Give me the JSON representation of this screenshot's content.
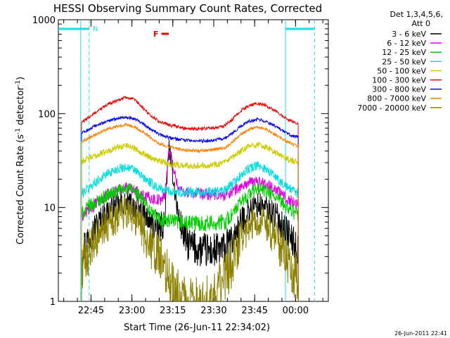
{
  "chart_data": {
    "type": "line",
    "title": "HESSI Observing Summary Count Rates, Corrected",
    "xlabel": "Start Time (26-Jun-11 22:34:02)",
    "ylabel_main": "Corrected Count Rate (s",
    "ylabel_sup1": "-1",
    "ylabel_mid": " detector",
    "ylabel_sup2": "-1",
    "ylabel_end": ")",
    "yscale": "log",
    "ylim": [
      1,
      1000
    ],
    "xlim_min": [
      -1,
      98
    ],
    "y_ticks": [
      {
        "value": 1,
        "label": "1"
      },
      {
        "value": 10,
        "label": "10"
      },
      {
        "value": 100,
        "label": "100"
      },
      {
        "value": 1000,
        "label": "1000"
      }
    ],
    "x_ticks": [
      {
        "value": 10.97,
        "label": "22:45"
      },
      {
        "value": 25.97,
        "label": "23:00"
      },
      {
        "value": 40.97,
        "label": "23:15"
      },
      {
        "value": 55.97,
        "label": "23:30"
      },
      {
        "value": 70.97,
        "label": "23:45"
      },
      {
        "value": 85.97,
        "label": "00:00"
      }
    ],
    "legend": {
      "placement": "right",
      "header": [
        "Det 1,3,4,5,6,",
        "Att 0"
      ]
    },
    "series": [
      {
        "name": "3 - 6 keV",
        "color": "#000000",
        "points": [
          [
            7.5,
            3.5
          ],
          [
            10,
            4.8
          ],
          [
            13,
            6.5
          ],
          [
            17,
            9
          ],
          [
            21,
            10.5
          ],
          [
            24,
            11
          ],
          [
            27,
            10.5
          ],
          [
            30,
            8.5
          ],
          [
            33,
            6.5
          ],
          [
            36,
            6
          ],
          [
            38,
            7
          ],
          [
            39.5,
            45
          ],
          [
            41,
            22
          ],
          [
            43,
            8
          ],
          [
            46,
            4.2
          ],
          [
            50,
            3.6
          ],
          [
            55,
            3.4
          ],
          [
            60,
            3.6
          ],
          [
            63,
            4.5
          ],
          [
            66,
            7
          ],
          [
            69,
            9.5
          ],
          [
            72,
            10.5
          ],
          [
            75,
            10
          ],
          [
            79,
            8
          ],
          [
            82,
            6
          ],
          [
            85,
            4.3
          ],
          [
            87,
            3.3
          ]
        ]
      },
      {
        "name": "6 - 12 keV",
        "color": "#e000e0",
        "points": [
          [
            7.5,
            8
          ],
          [
            10,
            9.5
          ],
          [
            13,
            11
          ],
          [
            17,
            13.5
          ],
          [
            21,
            15.5
          ],
          [
            24,
            16.5
          ],
          [
            27,
            15.5
          ],
          [
            30,
            13.5
          ],
          [
            33,
            12.5
          ],
          [
            36,
            12
          ],
          [
            38,
            13
          ],
          [
            39.5,
            42
          ],
          [
            41,
            28
          ],
          [
            43,
            16
          ],
          [
            46,
            14.5
          ],
          [
            50,
            14
          ],
          [
            55,
            13.5
          ],
          [
            60,
            13.5
          ],
          [
            63,
            15
          ],
          [
            66,
            16.5
          ],
          [
            69,
            18.5
          ],
          [
            72,
            19
          ],
          [
            75,
            18
          ],
          [
            79,
            15.5
          ],
          [
            82,
            13
          ],
          [
            85,
            11.5
          ],
          [
            87,
            10.5
          ]
        ]
      },
      {
        "name": "12 - 25 keV",
        "color": "#00cc00",
        "points": [
          [
            7.5,
            8.5
          ],
          [
            10,
            10
          ],
          [
            13,
            11.5
          ],
          [
            17,
            13.5
          ],
          [
            21,
            15
          ],
          [
            24,
            16
          ],
          [
            27,
            15
          ],
          [
            30,
            12
          ],
          [
            33,
            9
          ],
          [
            36,
            7.5
          ],
          [
            40,
            7
          ],
          [
            45,
            6.8
          ],
          [
            50,
            6.8
          ],
          [
            55,
            6.8
          ],
          [
            60,
            7
          ],
          [
            63,
            8.5
          ],
          [
            66,
            11.5
          ],
          [
            69,
            14
          ],
          [
            72,
            16
          ],
          [
            75,
            15
          ],
          [
            79,
            12.5
          ],
          [
            82,
            10.5
          ],
          [
            85,
            9
          ],
          [
            87,
            8.5
          ]
        ]
      },
      {
        "name": "25 - 50 keV",
        "color": "#00dddd",
        "points": [
          [
            7.5,
            14
          ],
          [
            10,
            16
          ],
          [
            13,
            19
          ],
          [
            17,
            23
          ],
          [
            21,
            26
          ],
          [
            24,
            27
          ],
          [
            27,
            25
          ],
          [
            30,
            21
          ],
          [
            33,
            18
          ],
          [
            36,
            16
          ],
          [
            40,
            15
          ],
          [
            45,
            14.5
          ],
          [
            50,
            14.5
          ],
          [
            55,
            14.5
          ],
          [
            60,
            15
          ],
          [
            63,
            18
          ],
          [
            66,
            22
          ],
          [
            69,
            26
          ],
          [
            72,
            28
          ],
          [
            75,
            26
          ],
          [
            79,
            21
          ],
          [
            82,
            17
          ],
          [
            85,
            15
          ],
          [
            87,
            14
          ]
        ]
      },
      {
        "name": "50 - 100 keV",
        "color": "#cccc00",
        "points": [
          [
            7.5,
            31
          ],
          [
            10,
            33
          ],
          [
            13,
            36
          ],
          [
            17,
            40
          ],
          [
            21,
            44
          ],
          [
            24,
            46
          ],
          [
            27,
            43
          ],
          [
            30,
            38
          ],
          [
            33,
            34
          ],
          [
            36,
            31
          ],
          [
            40,
            29
          ],
          [
            45,
            28
          ],
          [
            50,
            28
          ],
          [
            55,
            28.5
          ],
          [
            60,
            30
          ],
          [
            63,
            34
          ],
          [
            66,
            40
          ],
          [
            69,
            45
          ],
          [
            72,
            47
          ],
          [
            75,
            44
          ],
          [
            79,
            38
          ],
          [
            82,
            34
          ],
          [
            85,
            31
          ],
          [
            87,
            30
          ]
        ]
      },
      {
        "name": "100 - 300 keV",
        "color": "#ee0000",
        "points": [
          [
            7.5,
            80
          ],
          [
            10,
            90
          ],
          [
            13,
            105
          ],
          [
            17,
            125
          ],
          [
            21,
            140
          ],
          [
            24,
            150
          ],
          [
            27,
            140
          ],
          [
            30,
            115
          ],
          [
            33,
            95
          ],
          [
            36,
            82
          ],
          [
            40,
            75
          ],
          [
            45,
            70
          ],
          [
            50,
            69
          ],
          [
            55,
            70
          ],
          [
            60,
            74
          ],
          [
            63,
            88
          ],
          [
            66,
            108
          ],
          [
            69,
            122
          ],
          [
            72,
            128
          ],
          [
            75,
            122
          ],
          [
            79,
            105
          ],
          [
            82,
            90
          ],
          [
            85,
            82
          ],
          [
            87,
            78
          ]
        ]
      },
      {
        "name": "300 - 800 keV",
        "color": "#0000ee",
        "points": [
          [
            7.5,
            62
          ],
          [
            10,
            67
          ],
          [
            13,
            75
          ],
          [
            17,
            83
          ],
          [
            21,
            90
          ],
          [
            24,
            92
          ],
          [
            27,
            88
          ],
          [
            30,
            78
          ],
          [
            33,
            68
          ],
          [
            36,
            60
          ],
          [
            40,
            55
          ],
          [
            45,
            52
          ],
          [
            50,
            51
          ],
          [
            55,
            52
          ],
          [
            60,
            54
          ],
          [
            63,
            62
          ],
          [
            66,
            74
          ],
          [
            69,
            83
          ],
          [
            72,
            87
          ],
          [
            75,
            83
          ],
          [
            79,
            72
          ],
          [
            82,
            63
          ],
          [
            85,
            58
          ],
          [
            87,
            56
          ]
        ]
      },
      {
        "name": "800 - 7000 keV",
        "color": "#ff8000",
        "points": [
          [
            7.5,
            50
          ],
          [
            10,
            55
          ],
          [
            13,
            61
          ],
          [
            17,
            68
          ],
          [
            21,
            74
          ],
          [
            24,
            76
          ],
          [
            27,
            72
          ],
          [
            30,
            64
          ],
          [
            33,
            55
          ],
          [
            36,
            48
          ],
          [
            40,
            44
          ],
          [
            45,
            41
          ],
          [
            50,
            40
          ],
          [
            55,
            41
          ],
          [
            60,
            43
          ],
          [
            63,
            50
          ],
          [
            66,
            60
          ],
          [
            69,
            68
          ],
          [
            72,
            72
          ],
          [
            75,
            68
          ],
          [
            79,
            59
          ],
          [
            82,
            52
          ],
          [
            85,
            47
          ],
          [
            87,
            45
          ]
        ]
      },
      {
        "name": "7000 - 20000 keV",
        "color": "#8b8000",
        "points": [
          [
            7.5,
            2.3
          ],
          [
            10,
            3.3
          ],
          [
            13,
            4.5
          ],
          [
            17,
            6.5
          ],
          [
            21,
            8.3
          ],
          [
            24,
            9
          ],
          [
            27,
            8
          ],
          [
            30,
            5.5
          ],
          [
            33,
            3.8
          ],
          [
            36,
            2.8
          ],
          [
            40,
            1.7
          ],
          [
            45,
            1.05
          ],
          [
            50,
            1.05
          ],
          [
            55,
            1.1
          ],
          [
            60,
            1.8
          ],
          [
            63,
            2.8
          ],
          [
            66,
            4.8
          ],
          [
            69,
            6.5
          ],
          [
            72,
            7.5
          ],
          [
            75,
            6.8
          ],
          [
            79,
            4.5
          ],
          [
            82,
            3.2
          ],
          [
            85,
            2.1
          ],
          [
            87,
            1.6
          ]
        ]
      }
    ],
    "annotations": {
      "night_marker": "N",
      "flare_marker": "F"
    },
    "timestamp": "26-Jun-2011 22:41"
  }
}
